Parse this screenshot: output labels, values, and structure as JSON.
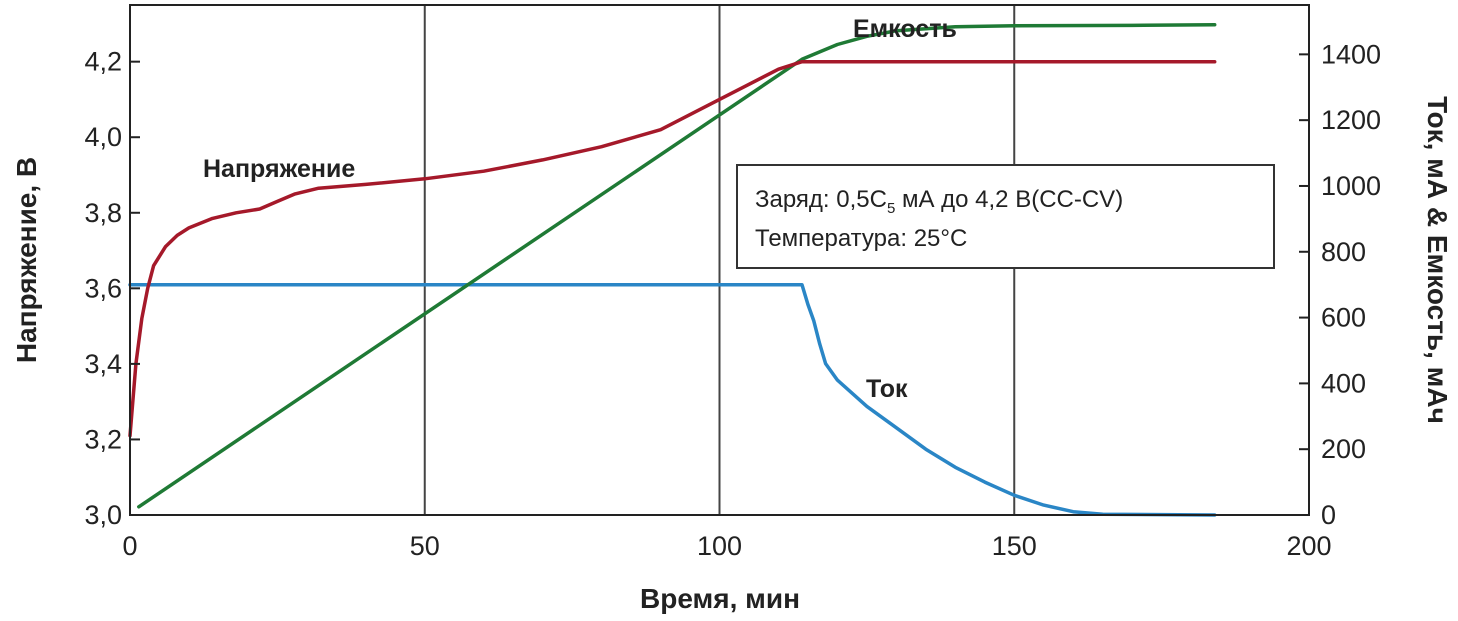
{
  "chart_data": {
    "type": "line",
    "xlabel": "Время, мин",
    "ylabel_left": "Напряжение, В",
    "ylabel_right": "Ток, мА & Емкость, мАч",
    "xlim": [
      0,
      200
    ],
    "ylim_left": [
      3.0,
      4.35
    ],
    "ylim_right": [
      0,
      1550
    ],
    "x_ticks": [
      "0",
      "50",
      "100",
      "150",
      "200"
    ],
    "x_tick_values": [
      0,
      50,
      100,
      150,
      200
    ],
    "left_ticks": [
      "3,0",
      "3,2",
      "3,4",
      "3,6",
      "3,8",
      "4,0",
      "4,2"
    ],
    "left_tick_values": [
      3.0,
      3.2,
      3.4,
      3.6,
      3.8,
      4.0,
      4.2
    ],
    "right_ticks": [
      "0",
      "200",
      "400",
      "600",
      "800",
      "1000",
      "1200",
      "1400"
    ],
    "right_tick_values": [
      0,
      200,
      400,
      600,
      800,
      1000,
      1200,
      1400
    ],
    "grid": "vertical",
    "series": [
      {
        "name": "Напряжение",
        "axis": "left",
        "color": "#a5192a",
        "points": [
          [
            0,
            3.21
          ],
          [
            1,
            3.4
          ],
          [
            2,
            3.52
          ],
          [
            3,
            3.6
          ],
          [
            4,
            3.66
          ],
          [
            6,
            3.71
          ],
          [
            8,
            3.74
          ],
          [
            10,
            3.76
          ],
          [
            14,
            3.785
          ],
          [
            18,
            3.8
          ],
          [
            22,
            3.81
          ],
          [
            25,
            3.83
          ],
          [
            28,
            3.85
          ],
          [
            32,
            3.865
          ],
          [
            40,
            3.875
          ],
          [
            50,
            3.89
          ],
          [
            60,
            3.91
          ],
          [
            70,
            3.94
          ],
          [
            80,
            3.975
          ],
          [
            90,
            4.02
          ],
          [
            100,
            4.1
          ],
          [
            105,
            4.14
          ],
          [
            110,
            4.18
          ],
          [
            114,
            4.2
          ],
          [
            184,
            4.2
          ]
        ]
      },
      {
        "name": "Емкость",
        "axis": "right",
        "color": "#1f7a35",
        "points": [
          [
            1.5,
            25
          ],
          [
            114,
            1385
          ],
          [
            120,
            1430
          ],
          [
            125,
            1455
          ],
          [
            130,
            1472
          ],
          [
            140,
            1484
          ],
          [
            150,
            1487
          ],
          [
            170,
            1488
          ],
          [
            184,
            1490
          ]
        ]
      },
      {
        "name": "Ток",
        "axis": "right",
        "color": "#2a86c6",
        "points": [
          [
            0,
            700
          ],
          [
            114,
            700
          ],
          [
            115,
            640
          ],
          [
            116,
            590
          ],
          [
            117,
            520
          ],
          [
            118,
            460
          ],
          [
            120,
            410
          ],
          [
            125,
            330
          ],
          [
            130,
            265
          ],
          [
            135,
            200
          ],
          [
            140,
            145
          ],
          [
            145,
            100
          ],
          [
            150,
            60
          ],
          [
            155,
            30
          ],
          [
            160,
            10
          ],
          [
            165,
            2
          ],
          [
            184,
            0
          ]
        ]
      }
    ],
    "annotations": [
      "Напряжение",
      "Емкость",
      "Ток"
    ],
    "note_line1": "Заряд: 0,5C",
    "note_sub": "5",
    "note_line1_rest": " мА до 4,2 В(CC-CV)",
    "note_line2": "Температура: 25°C"
  }
}
